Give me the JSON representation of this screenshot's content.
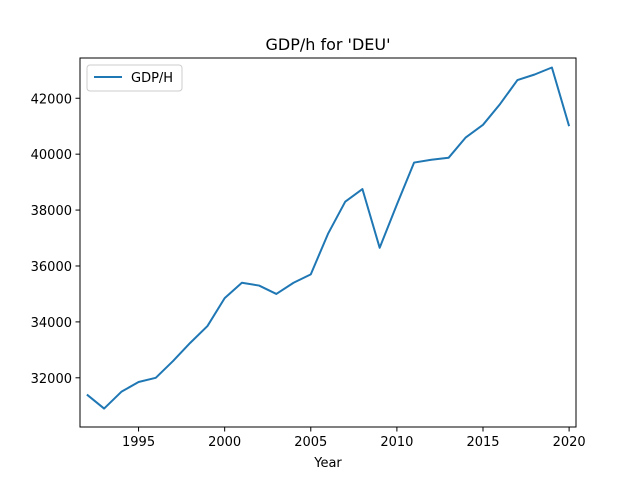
{
  "chart_data": {
    "type": "line",
    "title": "GDP/h for 'DEU'",
    "xlabel": "Year",
    "ylabel": "",
    "xlim": [
      1991.6,
      2020.4
    ],
    "ylim": [
      30240,
      43440
    ],
    "xticks": [
      1995,
      2000,
      2005,
      2010,
      2015,
      2020
    ],
    "yticks": [
      32000,
      34000,
      36000,
      38000,
      40000,
      42000
    ],
    "grid": false,
    "legend_position": "upper-left",
    "series": [
      {
        "name": "GDP/H",
        "color": "#1f77b4",
        "x": [
          1992,
          1993,
          1994,
          1995,
          1996,
          1997,
          1998,
          1999,
          2000,
          2001,
          2002,
          2003,
          2004,
          2005,
          2006,
          2007,
          2008,
          2009,
          2010,
          2011,
          2012,
          2013,
          2014,
          2015,
          2016,
          2017,
          2018,
          2019,
          2020
        ],
        "y": [
          31400,
          30900,
          31500,
          31850,
          32000,
          32600,
          33250,
          33850,
          34850,
          35400,
          35300,
          35000,
          35400,
          35700,
          37150,
          38300,
          38750,
          36650,
          38200,
          39700,
          39800,
          39870,
          40600,
          41050,
          41800,
          42650,
          42850,
          43100,
          41000
        ]
      }
    ]
  }
}
